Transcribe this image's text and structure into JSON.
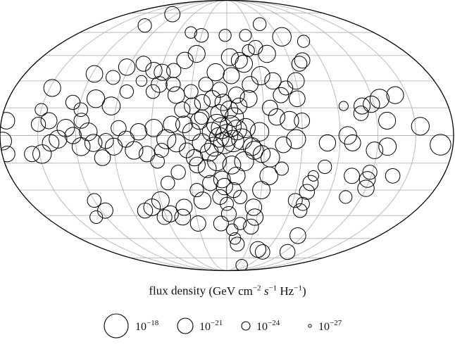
{
  "chart_data": {
    "type": "scatter",
    "projection": "mollweide",
    "title": "",
    "caption": {
      "text": "flux density",
      "unit_parts": [
        "(GeV cm",
        "−2",
        " s",
        "−1",
        " Hz",
        "−1",
        ")"
      ]
    },
    "grid": true,
    "size_legend": [
      {
        "base": "10",
        "exp": "−18",
        "value": 1e-18
      },
      {
        "base": "10",
        "exp": "−21",
        "value": 1e-21
      },
      {
        "base": "10",
        "exp": "−24",
        "value": 1e-24
      },
      {
        "base": "10",
        "exp": "−27",
        "value": 1e-27
      }
    ],
    "colors": {
      "marker_edge": "#000000",
      "grid": "#b4b4b4",
      "outline": "#000000"
    },
    "points": [
      [
        -154,
        5,
        -20.3
      ],
      [
        -170,
        -5,
        -19.2
      ],
      [
        -128,
        8,
        -20.6
      ],
      [
        -128,
        -6,
        -20.4
      ],
      [
        -118,
        -8,
        -20.7
      ],
      [
        -100,
        -4,
        -20.9
      ],
      [
        -80,
        -4,
        -20.8
      ],
      [
        -140,
        22,
        -20.6
      ],
      [
        -126,
        20,
        -19.8
      ],
      [
        -118,
        17,
        -20.8
      ],
      [
        -110,
        16,
        -20.9
      ],
      [
        -108,
        12,
        -21.5
      ],
      [
        -95,
        16,
        -23.5
      ],
      [
        -118,
        -20,
        -21.6
      ],
      [
        -118,
        -24,
        -21.0
      ],
      [
        -104,
        -22,
        -21.2
      ],
      [
        -120,
        -29,
        -20.8
      ],
      [
        -138,
        -22,
        -21.5
      ],
      [
        -106,
        -34,
        -22.2
      ],
      [
        -80,
        -17,
        -21.9
      ],
      [
        -71,
        -26,
        -21.2
      ],
      [
        -70,
        -31,
        -21.3
      ],
      [
        -62,
        -36,
        -21.7
      ],
      [
        -70,
        -42,
        -21.8
      ],
      [
        -70,
        -38,
        -22.0
      ],
      [
        -72,
        -22,
        -23.0
      ],
      [
        -84,
        -58,
        -21.0
      ],
      [
        -95,
        -70,
        -21.3
      ],
      [
        -60,
        30,
        -20.7
      ],
      [
        -58,
        20,
        -21.0
      ],
      [
        -45,
        22,
        -21.2
      ],
      [
        -68,
        40,
        -21.3
      ],
      [
        -85,
        54,
        -22.4
      ],
      [
        -64,
        57,
        -20.0
      ],
      [
        -72,
        42,
        -21.2
      ],
      [
        -40,
        30,
        -20.8
      ],
      [
        -30,
        33,
        -20.1
      ],
      [
        -35,
        15,
        -21.2
      ],
      [
        -40,
        10,
        -20.8
      ],
      [
        -50,
        8,
        -20.0
      ],
      [
        -60,
        8,
        -21.2
      ],
      [
        -55,
        -2,
        -19.8
      ],
      [
        -45,
        -5,
        -21.0
      ],
      [
        -45,
        -18,
        -22.0
      ],
      [
        -35,
        -22,
        -20.2
      ],
      [
        -30,
        -30,
        -20.4
      ],
      [
        -25,
        -40,
        -20.8
      ],
      [
        -35,
        -12,
        -20.0
      ],
      [
        -22,
        -8,
        -20.2
      ],
      [
        -15,
        4,
        -19.8
      ],
      [
        -12,
        -2,
        -19.2
      ],
      [
        -8,
        3,
        -19.5
      ],
      [
        -5,
        -3,
        -18.9
      ],
      [
        -3,
        5,
        -19.0
      ],
      [
        0,
        0,
        -18.7
      ],
      [
        2,
        -4,
        -18.9
      ],
      [
        4,
        4,
        -19.1
      ],
      [
        6,
        -1,
        -19.6
      ],
      [
        8,
        6,
        -19.4
      ],
      [
        10,
        -6,
        -19.8
      ],
      [
        12,
        2,
        -19.9
      ],
      [
        14,
        -9,
        -20.2
      ],
      [
        -6,
        10,
        -20.0
      ],
      [
        -2,
        14,
        -20.5
      ],
      [
        3,
        18,
        -20.8
      ],
      [
        6,
        12,
        -20.4
      ],
      [
        -10,
        16,
        -21.0
      ],
      [
        -18,
        20,
        -20.6
      ],
      [
        -8,
        22,
        -20.9
      ],
      [
        6,
        25,
        -21.3
      ],
      [
        12,
        20,
        -20.8
      ],
      [
        18,
        28,
        -21.6
      ],
      [
        -20,
        28,
        -21.0
      ],
      [
        -4,
        33,
        -20.9
      ],
      [
        10,
        35,
        -20.5
      ],
      [
        -14,
        -14,
        -19.8
      ],
      [
        -4,
        -16,
        -20.2
      ],
      [
        8,
        -14,
        -19.9
      ],
      [
        16,
        -18,
        -20.2
      ],
      [
        -8,
        -22,
        -20.4
      ],
      [
        4,
        -24,
        -20.7
      ],
      [
        14,
        -26,
        -21.2
      ],
      [
        -6,
        -30,
        -21.3
      ],
      [
        2,
        -28,
        -20.8
      ],
      [
        -12,
        -34,
        -21.9
      ],
      [
        0,
        -38,
        -22.0
      ],
      [
        6,
        -34,
        -21.4
      ],
      [
        -20,
        -6,
        -20.3
      ],
      [
        -26,
        2,
        -20.0
      ],
      [
        -28,
        -10,
        -20.6
      ],
      [
        20,
        -4,
        -20.0
      ],
      [
        22,
        8,
        -20.5
      ],
      [
        26,
        -12,
        -20.8
      ],
      [
        28,
        2,
        -20.4
      ],
      [
        32,
        -8,
        -21.4
      ],
      [
        34,
        6,
        -20.7
      ],
      [
        40,
        -4,
        -20.2
      ],
      [
        44,
        6,
        -20.8
      ],
      [
        48,
        -2,
        -19.8
      ],
      [
        52,
        -8,
        -21.7
      ],
      [
        58,
        4,
        -20.4
      ],
      [
        64,
        -10,
        -21.1
      ],
      [
        70,
        2,
        -20.8
      ],
      [
        74,
        -8,
        -20.3
      ],
      [
        80,
        -2,
        -20.9
      ],
      [
        86,
        4,
        -21.3
      ],
      [
        90,
        -6,
        -20.6
      ],
      [
        96,
        -3,
        -21.3
      ],
      [
        100,
        -12,
        -21.0
      ],
      [
        106,
        -4,
        -20.5
      ],
      [
        110,
        2,
        -20.3
      ],
      [
        116,
        -6,
        -20.2
      ],
      [
        122,
        0,
        -20.8
      ],
      [
        128,
        4,
        -20.4
      ],
      [
        134,
        -2,
        -20.3
      ],
      [
        140,
        -4,
        -20.7
      ],
      [
        148,
        -10,
        -20.0
      ],
      [
        156,
        -10,
        -21.2
      ],
      [
        150,
        6,
        -21.6
      ],
      [
        142,
        8,
        -20.9
      ],
      [
        116,
        8,
        -21.3
      ],
      [
        20,
        18,
        -21.1
      ],
      [
        28,
        16,
        -20.9
      ],
      [
        36,
        14,
        -21.1
      ],
      [
        30,
        24,
        -21.7
      ],
      [
        42,
        22,
        -20.7
      ],
      [
        46,
        28,
        -21.6
      ],
      [
        58,
        28,
        -21.0
      ],
      [
        62,
        24,
        -21.8
      ],
      [
        74,
        30,
        -22.9
      ],
      [
        84,
        24,
        -21.9
      ],
      [
        94,
        16,
        -20.2
      ],
      [
        108,
        20,
        -20.3
      ],
      [
        118,
        14,
        -21.8
      ],
      [
        126,
        18,
        -21.6
      ],
      [
        150,
        14,
        -22.3
      ],
      [
        176,
        8,
        -20.7
      ],
      [
        178,
        -3,
        -20.3
      ],
      [
        176,
        -10,
        -21.1
      ],
      [
        30,
        46,
        -20.6
      ],
      [
        40,
        42,
        -20.8
      ],
      [
        48,
        36,
        -21.6
      ],
      [
        58,
        35,
        -20.9
      ],
      [
        66,
        36,
        -20.8
      ],
      [
        78,
        40,
        -21.3
      ],
      [
        92,
        38,
        -20.8
      ],
      [
        100,
        32,
        -21.7
      ],
      [
        118,
        34,
        -20.7
      ],
      [
        148,
        26,
        -20.6
      ],
      [
        -3,
        44,
        -20.6
      ],
      [
        -12,
        42,
        -20.9
      ],
      [
        -16,
        40,
        -20.5
      ],
      [
        -22,
        48,
        -22.4
      ],
      [
        -30,
        50,
        -21.6
      ],
      [
        -40,
        46,
        -20.5
      ],
      [
        -22,
        58,
        -22.5
      ],
      [
        30,
        58,
        -21.8
      ],
      [
        44,
        60,
        -22.6
      ],
      [
        112,
        65,
        -21.9
      ],
      [
        98,
        74,
        -21.2
      ],
      [
        40,
        -20,
        -21.6
      ],
      [
        50,
        -26,
        -21.8
      ],
      [
        26,
        -30,
        -21.9
      ],
      [
        22,
        -36,
        -20.6
      ],
      [
        40,
        -40,
        -20.9
      ],
      [
        55,
        -44,
        -20.9
      ],
      [
        62,
        -46,
        -21.4
      ],
      [
        70,
        -40,
        -20.7
      ],
      [
        78,
        -42,
        -21.3
      ],
      [
        60,
        -36,
        -20.4
      ],
      [
        44,
        -46,
        -21.0
      ],
      [
        30,
        -50,
        -21.2
      ],
      [
        120,
        -36,
        -21.8
      ],
      [
        116,
        -42,
        -21.2
      ],
      [
        130,
        -46,
        -22.2
      ],
      [
        6,
        -50,
        -21.4
      ],
      [
        -14,
        -50,
        -22.3
      ],
      [
        -26,
        -52,
        -21.3
      ],
      [
        -28,
        -46,
        -20.8
      ],
      [
        -6,
        -54,
        -22.6
      ],
      [
        -10,
        -60,
        -22.6
      ],
      [
        -14,
        -64,
        -21.7
      ],
      [
        -46,
        -68,
        -21.0
      ],
      [
        -56,
        -70,
        -21.5
      ],
      [
        -42,
        -82,
        -22.6
      ],
      [
        -46,
        66,
        -22.1
      ],
      [
        2,
        58,
        -22.4
      ],
      [
        20,
        10,
        -21.5
      ],
      [
        -50,
        26,
        -21.7
      ],
      [
        -96,
        0,
        -20.3
      ],
      [
        24,
        -16,
        -21.0
      ],
      [
        56,
        -14,
        -21.8
      ],
      [
        -2,
        -44,
        -21.4
      ]
    ]
  }
}
